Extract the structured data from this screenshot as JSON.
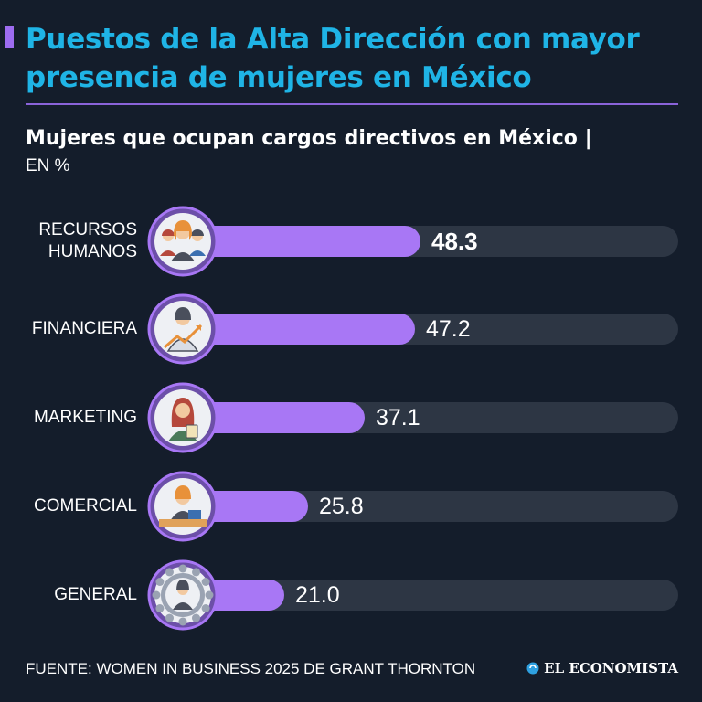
{
  "title": "Puestos de la Alta Dirección con mayor presencia de mujeres en México",
  "subtitle": "Mujeres que ocupan cargos directivos en México |",
  "unit": "EN %",
  "colors": {
    "accent": "#9d6cf0",
    "title": "#1fb4e6",
    "bar": "#a877f5",
    "track": "#2d3644",
    "background": "#141d2b"
  },
  "chart_data": {
    "type": "bar",
    "orientation": "horizontal",
    "categories": [
      "RECURSOS\nHUMANOS",
      "FINANCIERA",
      "MARKETING",
      "COMERCIAL",
      "GENERAL"
    ],
    "values": [
      48.3,
      47.2,
      37.1,
      25.8,
      21.0
    ],
    "value_labels": [
      "48.3",
      "47.2",
      "37.1",
      "25.8",
      "21.0"
    ],
    "icons": [
      "team-women-icon",
      "businesswoman-growth-icon",
      "woman-clipboard-icon",
      "woman-desk-icon",
      "woman-gear-icon"
    ],
    "xlim": [
      0,
      100
    ],
    "grid": false,
    "legend": "none"
  },
  "footer": {
    "source": "FUENTE: WOMEN IN BUSINESS 2025 DE GRANT THORNTON",
    "brand": "EL ECONOMISTA",
    "brand_icon": "el-economista-logo-icon"
  }
}
